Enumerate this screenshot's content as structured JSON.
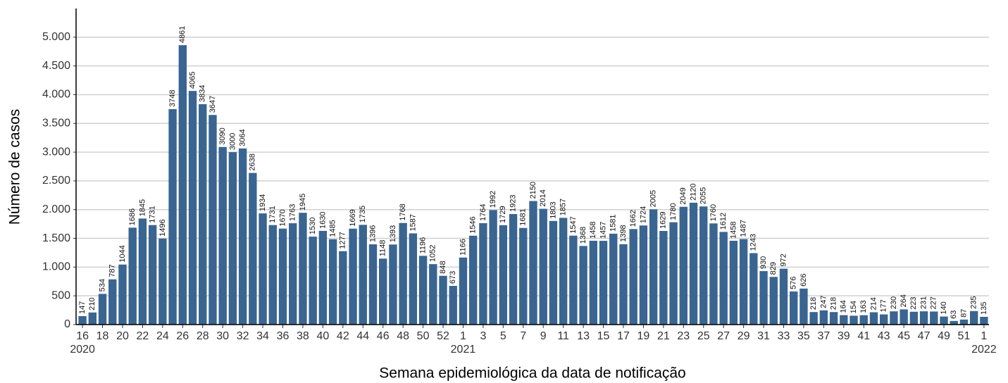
{
  "chart_data": {
    "type": "bar",
    "y_label": "Número de casos",
    "x_label": "Semana epidemiológica da data de notificação",
    "categories": [
      "16",
      null,
      "18",
      null,
      "20",
      null,
      "22",
      null,
      "24",
      null,
      "26",
      null,
      "28",
      null,
      "30",
      null,
      "32",
      null,
      "34",
      null,
      "36",
      null,
      "38",
      null,
      "40",
      null,
      "42",
      null,
      "44",
      null,
      "46",
      null,
      "48",
      null,
      "50",
      null,
      "52",
      null,
      "1",
      null,
      "3",
      null,
      "5",
      null,
      "7",
      null,
      "9",
      null,
      "11",
      null,
      "13",
      null,
      "15",
      null,
      "17",
      null,
      "19",
      null,
      "21",
      null,
      "23",
      null,
      "25",
      null,
      "27",
      null,
      "29",
      null,
      "31",
      null,
      "33",
      null,
      "35",
      null,
      "37",
      null,
      "39",
      null,
      "41",
      null,
      "43",
      null,
      "45",
      null,
      "47",
      null,
      "49",
      null,
      "51",
      null,
      "1"
    ],
    "category_years": [
      "2020",
      null,
      null,
      null,
      null,
      null,
      null,
      null,
      null,
      null,
      null,
      null,
      null,
      null,
      null,
      null,
      null,
      null,
      null,
      null,
      null,
      null,
      null,
      null,
      null,
      null,
      null,
      null,
      null,
      null,
      null,
      null,
      null,
      null,
      null,
      null,
      null,
      null,
      "2021",
      null,
      null,
      null,
      null,
      null,
      null,
      null,
      null,
      null,
      null,
      null,
      null,
      null,
      null,
      null,
      null,
      null,
      null,
      null,
      null,
      null,
      null,
      null,
      null,
      null,
      null,
      null,
      null,
      null,
      null,
      null,
      null,
      null,
      null,
      null,
      null,
      null,
      null,
      null,
      null,
      null,
      null,
      null,
      null,
      null,
      null,
      null,
      null,
      null,
      null,
      null,
      "2022"
    ],
    "values": [
      147,
      210,
      534,
      787,
      1044,
      1686,
      1845,
      1731,
      1496,
      3748,
      4861,
      4065,
      3834,
      3647,
      3090,
      3000,
      3064,
      2638,
      1934,
      1731,
      1670,
      1763,
      1945,
      1530,
      1630,
      1485,
      1277,
      1669,
      1735,
      1396,
      1148,
      1393,
      1768,
      1587,
      1196,
      1052,
      848,
      673,
      1166,
      1546,
      1764,
      1992,
      1729,
      1923,
      1681,
      2150,
      2014,
      1803,
      1857,
      1547,
      1368,
      1458,
      1457,
      1581,
      1398,
      1662,
      1724,
      2005,
      1629,
      1780,
      2049,
      2120,
      2055,
      1760,
      1612,
      1458,
      1487,
      1243,
      930,
      829,
      972,
      576,
      626,
      218,
      247,
      218,
      164,
      154,
      163,
      214,
      177,
      230,
      264,
      223,
      231,
      227,
      140,
      63,
      87,
      235,
      135
    ],
    "color": "#3a6591",
    "ylim": [
      0,
      5500
    ],
    "yticks": [
      0,
      500,
      {
        "value": 1000,
        "label": "1.000"
      },
      {
        "value": 1500,
        "label": "1.500"
      },
      {
        "value": 2000,
        "label": "2.000"
      },
      {
        "value": 2500,
        "label": "2.500"
      },
      {
        "value": 3000,
        "label": "3.000"
      },
      {
        "value": 3500,
        "label": "3.500"
      },
      {
        "value": 4000,
        "label": "4.000"
      },
      {
        "value": 4500,
        "label": "4.500"
      },
      {
        "value": 5000,
        "label": "5.000"
      }
    ],
    "grid": true
  }
}
